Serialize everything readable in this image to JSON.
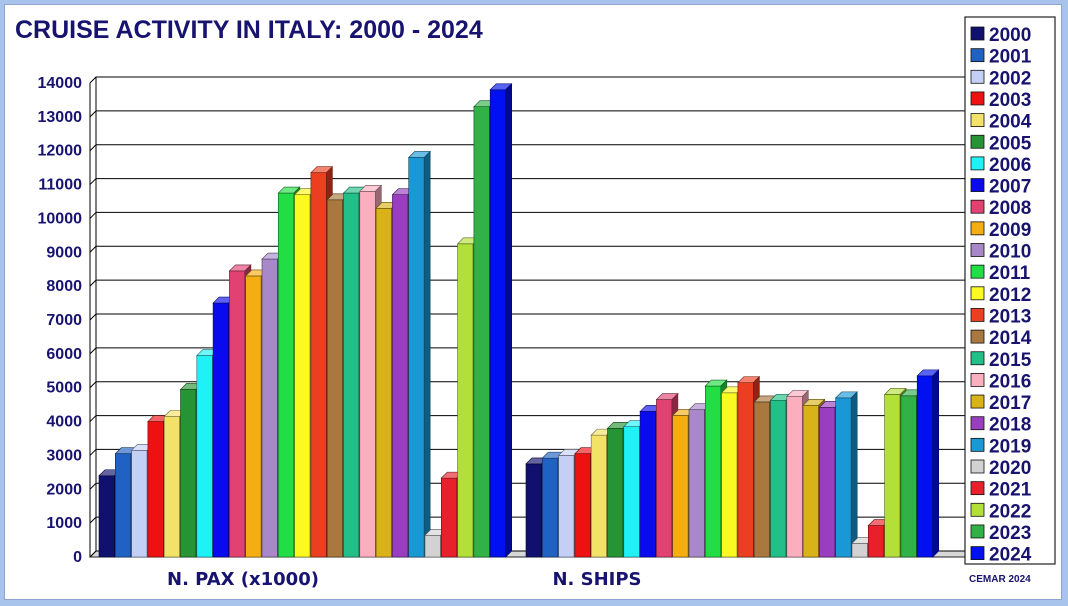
{
  "chart_data": {
    "type": "bar",
    "title": "CRUISE ACTIVITY IN ITALY: 2000 - 2024",
    "categories": [
      "N. PAX (x1000)",
      "N. SHIPS"
    ],
    "ylim": [
      0,
      14000
    ],
    "yticks": [
      0,
      1000,
      2000,
      3000,
      4000,
      5000,
      6000,
      7000,
      8000,
      9000,
      10000,
      11000,
      12000,
      13000,
      14000
    ],
    "grid": true,
    "legend_position": "right",
    "credit": "CEMAR 2024",
    "series": [
      {
        "name": "2000",
        "color": "#10106e",
        "values": [
          2400,
          2750
        ]
      },
      {
        "name": "2001",
        "color": "#1f62c4",
        "values": [
          3050,
          2920
        ]
      },
      {
        "name": "2002",
        "color": "#c4cff5",
        "values": [
          3150,
          3000
        ]
      },
      {
        "name": "2003",
        "color": "#ee1111",
        "values": [
          4000,
          3050
        ]
      },
      {
        "name": "2004",
        "color": "#f2e268",
        "values": [
          4150,
          3600
        ]
      },
      {
        "name": "2005",
        "color": "#269434",
        "values": [
          4950,
          3800
        ]
      },
      {
        "name": "2006",
        "color": "#1ff2f7",
        "values": [
          5950,
          3850
        ]
      },
      {
        "name": "2007",
        "color": "#0a0aee",
        "values": [
          7500,
          4300
        ]
      },
      {
        "name": "2008",
        "color": "#e24272",
        "values": [
          8450,
          4650
        ]
      },
      {
        "name": "2009",
        "color": "#f5ae12",
        "values": [
          8300,
          4180
        ]
      },
      {
        "name": "2010",
        "color": "#a888c8",
        "values": [
          8800,
          4350
        ]
      },
      {
        "name": "2011",
        "color": "#22dd44",
        "values": [
          10750,
          5050
        ]
      },
      {
        "name": "2012",
        "color": "#fafa22",
        "values": [
          10700,
          4850
        ]
      },
      {
        "name": "2013",
        "color": "#ec3e20",
        "values": [
          11350,
          5150
        ]
      },
      {
        "name": "2014",
        "color": "#a8783e",
        "values": [
          10550,
          4580
        ]
      },
      {
        "name": "2015",
        "color": "#22c088",
        "values": [
          10750,
          4630
        ]
      },
      {
        "name": "2016",
        "color": "#fbaebe",
        "values": [
          10800,
          4740
        ]
      },
      {
        "name": "2017",
        "color": "#d8b218",
        "values": [
          10300,
          4480
        ]
      },
      {
        "name": "2018",
        "color": "#9a3ec0",
        "values": [
          10700,
          4420
        ]
      },
      {
        "name": "2019",
        "color": "#1a98d6",
        "values": [
          11800,
          4700
        ]
      },
      {
        "name": "2020",
        "color": "#d2d2d2",
        "values": [
          640,
          400
        ]
      },
      {
        "name": "2021",
        "color": "#e8202c",
        "values": [
          2330,
          930
        ]
      },
      {
        "name": "2022",
        "color": "#b2e038",
        "values": [
          9250,
          4800
        ]
      },
      {
        "name": "2023",
        "color": "#30b246",
        "values": [
          13300,
          4760
        ]
      },
      {
        "name": "2024",
        "color": "#0010f0",
        "values": [
          13800,
          5350
        ]
      }
    ]
  }
}
